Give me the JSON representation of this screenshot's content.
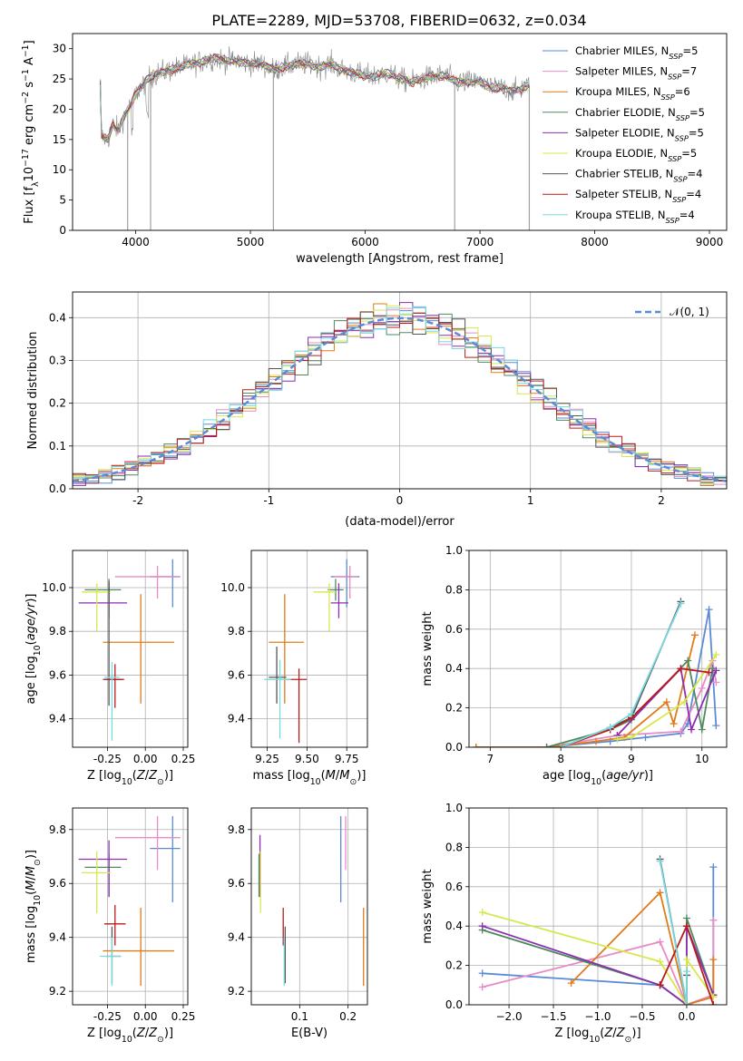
{
  "figure_title": "PLATE=2289, MJD=53708, FIBERID=0632, z=0.034",
  "models": [
    {
      "name": "Chabrier MILES",
      "nssp": "5",
      "color": "#5b8bd6"
    },
    {
      "name": "Salpeter MILES",
      "nssp": "7",
      "color": "#e88bc6"
    },
    {
      "name": "Kroupa MILES",
      "nssp": "6",
      "color": "#e07b1a"
    },
    {
      "name": "Chabrier ELODIE",
      "nssp": "5",
      "color": "#4e8a5e"
    },
    {
      "name": "Salpeter ELODIE",
      "nssp": "5",
      "color": "#8b2fb0"
    },
    {
      "name": "Kroupa ELODIE",
      "nssp": "5",
      "color": "#d6e84a"
    },
    {
      "name": "Chabrier STELIB",
      "nssp": "4",
      "color": "#555555"
    },
    {
      "name": "Salpeter STELIB",
      "nssp": "4",
      "color": "#b81c1c"
    },
    {
      "name": "Kroupa STELIB",
      "nssp": "4",
      "color": "#7ad8e0"
    }
  ],
  "chart_data": [
    {
      "id": "spectrum",
      "type": "line",
      "xlabel": "wavelength [Angstrom, rest frame]",
      "ylabel": "Flux [f_λ 10^-17 erg cm^-2 s^-1 A^-1]",
      "xlim": [
        3450,
        9150
      ],
      "ylim": [
        0,
        32.5
      ],
      "xticks": [
        4000,
        5000,
        6000,
        7000,
        8000,
        9000
      ],
      "yticks": [
        0,
        5,
        10,
        15,
        20,
        25,
        30
      ],
      "grid": false,
      "legend": "top-right",
      "data_range": [
        3690,
        7430
      ],
      "continuum": {
        "x": [
          3700,
          3760,
          3800,
          3850,
          3900,
          3950,
          4000,
          4100,
          4200,
          4300,
          4400,
          4500,
          4600,
          4700,
          4800,
          4900,
          5000,
          5100,
          5200,
          5300,
          5400,
          5500,
          5600,
          5700,
          5800,
          5900,
          6000,
          6100,
          6200,
          6300,
          6400,
          6500,
          6600,
          6700,
          6800,
          6900,
          7000,
          7100,
          7200,
          7300,
          7430
        ],
        "y": [
          15.5,
          15.0,
          17.5,
          16.5,
          19.0,
          20.5,
          22.5,
          25.0,
          26.0,
          26.5,
          27.0,
          27.5,
          28.0,
          28.5,
          28.0,
          28.0,
          27.5,
          27.5,
          26.5,
          27.0,
          27.5,
          27.5,
          27.0,
          27.5,
          26.5,
          26.0,
          25.5,
          25.5,
          26.0,
          25.0,
          24.5,
          25.0,
          25.5,
          25.5,
          24.5,
          24.5,
          24.5,
          23.5,
          23.5,
          23.0,
          24.0
        ]
      },
      "spikes": [
        {
          "x": 3930,
          "y": 0
        },
        {
          "x": 4130,
          "y": 0
        },
        {
          "x": 5200,
          "y": 0
        },
        {
          "x": 6780,
          "y": 0
        },
        {
          "x": 7430,
          "y": 0
        }
      ]
    },
    {
      "id": "residuals",
      "type": "line",
      "xlabel": "(data-model)/error",
      "ylabel": "Normed distribution",
      "xlim": [
        -2.5,
        2.5
      ],
      "ylim": [
        0,
        0.46
      ],
      "xticks": [
        -2,
        -1,
        0,
        1,
        2
      ],
      "yticks": [
        0.0,
        0.1,
        0.2,
        0.3,
        0.4
      ],
      "grid": true,
      "legend": "top-right",
      "reference_label": "𝒩(0, 1)",
      "bin_width": 0.1
    },
    {
      "id": "age_vs_Z",
      "type": "scatter",
      "xlabel": "Z [log10(Z/Z⊙)]",
      "ylabel": "age  [log10(age/yr)]",
      "xlim": [
        -0.48,
        0.28
      ],
      "ylim": [
        9.27,
        10.17
      ],
      "xticks": [
        -0.25,
        0.0,
        0.25
      ],
      "yticks": [
        9.4,
        9.6,
        9.8,
        10.0
      ],
      "grid": true,
      "points": [
        {
          "x": 0.18,
          "y": 10.05,
          "xerr": [
            0.15,
            0.05
          ],
          "yerr": [
            0.14,
            0.08
          ]
        },
        {
          "x": 0.08,
          "y": 10.05,
          "xerr": [
            0.28,
            0.15
          ],
          "yerr": [
            0.1,
            0.05
          ]
        },
        {
          "x": -0.03,
          "y": 9.75,
          "xerr": [
            0.25,
            0.22
          ],
          "yerr": [
            0.28,
            0.22
          ]
        },
        {
          "x": -0.24,
          "y": 9.99,
          "xerr": [
            0.16,
            0.08
          ],
          "yerr": [
            0.05,
            0.05
          ]
        },
        {
          "x": -0.24,
          "y": 9.93,
          "xerr": [
            0.2,
            0.12
          ],
          "yerr": [
            0.07,
            0.09
          ]
        },
        {
          "x": -0.32,
          "y": 9.98,
          "xerr": [
            0.1,
            0.09
          ],
          "yerr": [
            0.18,
            0.04
          ]
        },
        {
          "x": -0.24,
          "y": 9.58,
          "xerr": [
            0.04,
            0.09
          ],
          "yerr": [
            0.12,
            0.45
          ]
        },
        {
          "x": -0.2,
          "y": 9.58,
          "xerr": [
            0.07,
            0.06
          ],
          "yerr": [
            0.13,
            0.07
          ]
        },
        {
          "x": -0.22,
          "y": 9.59,
          "xerr": [
            0.05,
            0.05
          ],
          "yerr": [
            0.29,
            0.07
          ]
        }
      ]
    },
    {
      "id": "age_vs_mass",
      "type": "scatter",
      "xlabel": "mass [log10(M/M⊙)]",
      "ylabel": "",
      "xlim": [
        9.15,
        9.88
      ],
      "ylim": [
        9.27,
        10.17
      ],
      "xticks": [
        9.25,
        9.5,
        9.75
      ],
      "yticks": [
        9.4,
        9.6,
        9.8,
        10.0
      ],
      "grid": true,
      "points": [
        {
          "x": 9.75,
          "y": 10.05,
          "xerr": [
            0.1,
            0.08
          ],
          "yerr": [
            0.14,
            0.08
          ]
        },
        {
          "x": 9.77,
          "y": 10.05,
          "xerr": [
            0.1,
            0.05
          ],
          "yerr": [
            0.1,
            0.05
          ]
        },
        {
          "x": 9.36,
          "y": 9.75,
          "xerr": [
            0.1,
            0.12
          ],
          "yerr": [
            0.28,
            0.22
          ]
        },
        {
          "x": 9.68,
          "y": 9.99,
          "xerr": [
            0.05,
            0.05
          ],
          "yerr": [
            0.05,
            0.05
          ]
        },
        {
          "x": 9.7,
          "y": 9.93,
          "xerr": [
            0.05,
            0.06
          ],
          "yerr": [
            0.07,
            0.09
          ]
        },
        {
          "x": 9.64,
          "y": 9.98,
          "xerr": [
            0.1,
            0.04
          ],
          "yerr": [
            0.18,
            0.04
          ]
        },
        {
          "x": 9.31,
          "y": 9.59,
          "xerr": [
            0.05,
            0.06
          ],
          "yerr": [
            0.12,
            0.14
          ]
        },
        {
          "x": 9.45,
          "y": 9.58,
          "xerr": [
            0.08,
            0.05
          ],
          "yerr": [
            0.29,
            0.05
          ]
        },
        {
          "x": 9.33,
          "y": 9.58,
          "xerr": [
            0.1,
            0.07
          ],
          "yerr": [
            0.27,
            0.09
          ]
        }
      ]
    },
    {
      "id": "mass_weight_vs_age",
      "type": "line",
      "xlabel": "age  [log10(age/yr)]",
      "ylabel": "mass weight",
      "xlim": [
        6.7,
        10.35
      ],
      "ylim": [
        0,
        1.0
      ],
      "xticks": [
        7,
        8,
        9,
        10
      ],
      "yticks": [
        0.0,
        0.2,
        0.4,
        0.6,
        0.8,
        1.0
      ],
      "grid": true,
      "series": [
        {
          "x": [
            6.8,
            7.8,
            8.7,
            9.2,
            9.7,
            9.8,
            10.1,
            10.2
          ],
          "y": [
            0.0,
            0.0,
            0.03,
            0.05,
            0.07,
            0.12,
            0.7,
            0.11
          ]
        },
        {
          "x": [
            7.8,
            8.8,
            9.7,
            10.0,
            10.15,
            10.2
          ],
          "y": [
            0.0,
            0.06,
            0.08,
            0.3,
            0.44,
            0.33
          ]
        },
        {
          "x": [
            6.8,
            7.8,
            8.5,
            8.9,
            9.5,
            9.6,
            9.9
          ],
          "y": [
            0.0,
            0.0,
            0.03,
            0.05,
            0.23,
            0.12,
            0.57
          ]
        },
        {
          "x": [
            7.8,
            8.7,
            9.0,
            9.8,
            10.0,
            10.15
          ],
          "y": [
            0.0,
            0.09,
            0.14,
            0.44,
            0.09,
            0.4
          ]
        },
        {
          "x": [
            8.8,
            9.7,
            9.85,
            10.2
          ],
          "y": [
            0.06,
            0.4,
            0.09,
            0.39
          ]
        },
        {
          "x": [
            8.8,
            9.0,
            9.75,
            10.2
          ],
          "y": [
            0.04,
            0.05,
            0.23,
            0.47
          ]
        },
        {
          "x": [
            8.0,
            8.7,
            9.0,
            9.7
          ],
          "y": [
            0.0,
            0.1,
            0.15,
            0.74
          ]
        },
        {
          "x": [
            8.0,
            8.7,
            9.0,
            9.7,
            10.1
          ],
          "y": [
            0.0,
            0.09,
            0.15,
            0.4,
            0.38
          ]
        },
        {
          "x": [
            8.0,
            8.7,
            9.0,
            9.7
          ],
          "y": [
            0.0,
            0.1,
            0.17,
            0.73
          ]
        }
      ]
    },
    {
      "id": "mass_vs_Z",
      "type": "scatter",
      "xlabel": "Z [log10(Z/Z⊙)]",
      "ylabel": "mass [log10(M/M⊙)]",
      "xlim": [
        -0.48,
        0.28
      ],
      "ylim": [
        9.15,
        9.88
      ],
      "xticks": [
        -0.25,
        0.0,
        0.25
      ],
      "yticks": [
        9.2,
        9.4,
        9.6,
        9.8
      ],
      "grid": true,
      "points": [
        {
          "x": 0.18,
          "y": 9.73,
          "xerr": [
            0.15,
            0.05
          ],
          "yerr": [
            0.2,
            0.12
          ]
        },
        {
          "x": 0.08,
          "y": 9.77,
          "xerr": [
            0.28,
            0.15
          ],
          "yerr": [
            0.12,
            0.08
          ]
        },
        {
          "x": -0.03,
          "y": 9.35,
          "xerr": [
            0.25,
            0.22
          ],
          "yerr": [
            0.13,
            0.16
          ]
        },
        {
          "x": -0.24,
          "y": 9.66,
          "xerr": [
            0.16,
            0.08
          ],
          "yerr": [
            0.11,
            0.05
          ]
        },
        {
          "x": -0.24,
          "y": 9.69,
          "xerr": [
            0.2,
            0.12
          ],
          "yerr": [
            0.14,
            0.07
          ]
        },
        {
          "x": -0.32,
          "y": 9.64,
          "xerr": [
            0.1,
            0.09
          ],
          "yerr": [
            0.15,
            0.08
          ]
        },
        {
          "x": -0.22,
          "y": 9.33,
          "xerr": [
            0.04,
            0.06
          ],
          "yerr": [
            0.1,
            0.11
          ]
        },
        {
          "x": -0.2,
          "y": 9.45,
          "xerr": [
            0.07,
            0.07
          ],
          "yerr": [
            0.08,
            0.07
          ]
        },
        {
          "x": -0.22,
          "y": 9.33,
          "xerr": [
            0.08,
            0.06
          ],
          "yerr": [
            0.11,
            0.07
          ]
        }
      ]
    },
    {
      "id": "mass_vs_ebv",
      "type": "scatter",
      "xlabel": "E(B-V)",
      "ylabel": "",
      "xlim": [
        0.0,
        0.24
      ],
      "ylim": [
        9.15,
        9.88
      ],
      "xticks": [
        0.1,
        0.2
      ],
      "yticks": [
        9.2,
        9.4,
        9.6,
        9.8
      ],
      "grid": true,
      "points": [
        {
          "x": 0.185,
          "y": 9.73,
          "yerr": [
            0.2,
            0.12
          ]
        },
        {
          "x": 0.195,
          "y": 9.77,
          "yerr": [
            0.12,
            0.08
          ]
        },
        {
          "x": 0.232,
          "y": 9.35,
          "yerr": [
            0.13,
            0.16
          ]
        },
        {
          "x": 0.016,
          "y": 9.66,
          "yerr": [
            0.11,
            0.05
          ]
        },
        {
          "x": 0.018,
          "y": 9.69,
          "yerr": [
            0.14,
            0.09
          ]
        },
        {
          "x": 0.019,
          "y": 9.64,
          "yerr": [
            0.15,
            0.08
          ]
        },
        {
          "x": 0.07,
          "y": 9.33,
          "yerr": [
            0.1,
            0.11
          ]
        },
        {
          "x": 0.066,
          "y": 9.45,
          "yerr": [
            0.08,
            0.06
          ]
        },
        {
          "x": 0.068,
          "y": 9.33,
          "yerr": [
            0.11,
            0.07
          ]
        }
      ]
    },
    {
      "id": "mass_weight_vs_Z",
      "type": "line",
      "xlabel": "Z [log10(Z/Z⊙)]",
      "ylabel": "mass weight",
      "xlim": [
        -2.45,
        0.45
      ],
      "ylim": [
        0,
        1.0
      ],
      "xticks": [
        -2.0,
        -1.5,
        -1.0,
        -0.5,
        0.0
      ],
      "yticks": [
        0.0,
        0.2,
        0.4,
        0.6,
        0.8,
        1.0
      ],
      "grid": true,
      "series": [
        {
          "x": [
            -2.3,
            -0.3,
            0.0,
            0.3,
            0.3
          ],
          "y": [
            0.16,
            0.1,
            0.0,
            0.05,
            0.7
          ]
        },
        {
          "x": [
            -2.3,
            -0.3,
            0.0,
            0.3,
            0.3
          ],
          "y": [
            0.09,
            0.32,
            0.0,
            0.05,
            0.43
          ]
        },
        {
          "x": [
            -1.3,
            -0.3,
            0.0,
            0.3,
            0.3
          ],
          "y": [
            0.11,
            0.57,
            0.0,
            0.04,
            0.23
          ]
        },
        {
          "x": [
            -2.3,
            -0.3,
            0.0,
            0.0,
            0.3
          ],
          "y": [
            0.38,
            0.1,
            0.0,
            0.44,
            0.05
          ]
        },
        {
          "x": [
            -2.3,
            -0.3,
            0.0,
            0.0,
            0.3
          ],
          "y": [
            0.4,
            0.1,
            0.0,
            0.4,
            0.05
          ]
        },
        {
          "x": [
            -2.3,
            -0.3,
            0.0,
            0.0,
            0.3
          ],
          "y": [
            0.47,
            0.22,
            0.0,
            0.23,
            0.04
          ]
        },
        {
          "x": [
            -0.3,
            0.0,
            0.0
          ],
          "y": [
            0.74,
            0.0,
            0.15
          ]
        },
        {
          "x": [
            -0.3,
            0.0,
            0.3
          ],
          "y": [
            0.1,
            0.4,
            0.0
          ]
        },
        {
          "x": [
            -0.3,
            0.0,
            0.0
          ],
          "y": [
            0.73,
            0.0,
            0.17
          ]
        }
      ]
    }
  ]
}
